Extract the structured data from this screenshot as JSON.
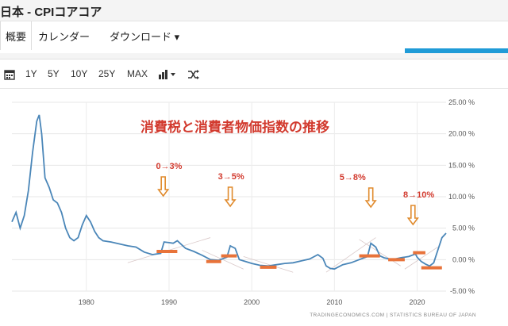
{
  "page": {
    "title": "日本 - CPIコアコア"
  },
  "tabs": [
    {
      "label": "概要"
    },
    {
      "label": "カレンダー"
    },
    {
      "label": "ダウンロード ▾"
    }
  ],
  "toolbar": {
    "ranges": [
      "1Y",
      "5Y",
      "10Y",
      "25Y",
      "MAX"
    ],
    "icons": [
      "calendar-icon",
      "bar-chart-icon",
      "shuffle-icon"
    ]
  },
  "colors": {
    "line": "#4a86b8",
    "annotation": "#d23a2e",
    "arrow": "#e08a2c",
    "marker": "#e8733a",
    "accent": "#1f9bd7"
  },
  "chart_data": {
    "type": "line",
    "title": "消費税と消費者物価指数の推移",
    "xlabel": "",
    "ylabel": "",
    "xlim": [
      1971,
      2023.5
    ],
    "ylim": [
      -5,
      25
    ],
    "x_ticks": [
      1980,
      1990,
      2000,
      2010,
      2020
    ],
    "y_ticks": [
      25,
      20,
      15,
      10,
      5,
      0,
      -5
    ],
    "y_tick_labels": [
      "25.00 %",
      "20.00 %",
      "15.00 %",
      "10.00 %",
      "5.00 %",
      "0.00 %",
      "-5.00 %"
    ],
    "grid": true,
    "series": [
      {
        "x": [
          1971,
          1971.5,
          1972,
          1972.5,
          1973,
          1973.5,
          1974,
          1974.3,
          1974.6,
          1975,
          1975.5,
          1976,
          1976.5,
          1977,
          1977.5,
          1978,
          1978.5,
          1979,
          1979.5,
          1980,
          1980.5,
          1981,
          1981.5,
          1982,
          1983,
          1984,
          1985,
          1986,
          1987,
          1988,
          1989,
          1989.4,
          1990,
          1990.5,
          1991,
          1991.5,
          1992,
          1993,
          1994,
          1995,
          1996,
          1997,
          1997.4,
          1998,
          1998.5,
          1999,
          2000,
          2001,
          2002,
          2003,
          2004,
          2005,
          2006,
          2007,
          2008,
          2008.6,
          2009,
          2009.5,
          2010,
          2011,
          2012,
          2013,
          2014,
          2014.4,
          2015,
          2015.5,
          2016,
          2017,
          2018,
          2019,
          2019.8,
          2020,
          2020.5,
          2021,
          2021.5,
          2022,
          2022.5,
          2023,
          2023.5
        ],
        "y": [
          6.0,
          7.5,
          5.0,
          7.0,
          11.0,
          17.0,
          22.0,
          23.0,
          20.0,
          13.0,
          11.5,
          9.5,
          9.0,
          7.5,
          5.0,
          3.5,
          3.0,
          3.5,
          5.5,
          7.0,
          6.0,
          4.5,
          3.5,
          3.0,
          2.8,
          2.5,
          2.2,
          2.0,
          1.2,
          0.8,
          1.0,
          2.8,
          2.7,
          2.6,
          3.0,
          2.4,
          1.8,
          1.3,
          0.7,
          0.0,
          -0.1,
          0.4,
          2.2,
          1.8,
          0.0,
          -0.2,
          -0.6,
          -0.9,
          -1.0,
          -0.8,
          -0.6,
          -0.5,
          -0.2,
          0.1,
          0.8,
          0.2,
          -1.0,
          -1.4,
          -1.5,
          -0.8,
          -0.5,
          0.0,
          0.5,
          2.6,
          2.0,
          0.6,
          0.3,
          0.0,
          0.3,
          0.5,
          0.9,
          0.4,
          -0.3,
          -0.7,
          -1.0,
          -0.5,
          1.5,
          3.5,
          4.2
        ]
      }
    ],
    "annotations": [
      {
        "text": "0→3%",
        "x": 1990,
        "arrow_at": 1989.3,
        "level_x": [
          1988.5,
          1991
        ]
      },
      {
        "text": "3→5%",
        "x": 1997.5,
        "arrow_at": 1997.4,
        "level_x": [
          1996.2,
          1998.2
        ]
      },
      {
        "text": "5→8%",
        "x": 2012.2,
        "arrow_at": 2014.4,
        "level_x": [
          2013,
          2015.5
        ]
      },
      {
        "text": "8→10%",
        "x": 2020.2,
        "arrow_at": 2019.5,
        "level_x": [
          2019.5,
          2021
        ]
      }
    ],
    "source": "TRADINGECONOMICS.COM  |  STATISTICS BUREAU OF JAPAN"
  }
}
